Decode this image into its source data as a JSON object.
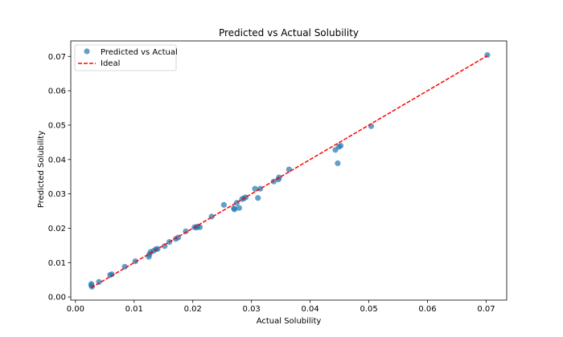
{
  "chart_data": {
    "type": "scatter",
    "title": "Predicted vs Actual Solubility",
    "xlabel": "Actual Solubility",
    "ylabel": "Predicted Solubility",
    "xlim": [
      -0.0008,
      0.0735
    ],
    "ylim": [
      -0.0009,
      0.0745
    ],
    "xticks": [
      0.0,
      0.01,
      0.02,
      0.03,
      0.04,
      0.05,
      0.06,
      0.07
    ],
    "xtick_labels": [
      "0.00",
      "0.01",
      "0.02",
      "0.03",
      "0.04",
      "0.05",
      "0.06",
      "0.07"
    ],
    "yticks": [
      0.0,
      0.01,
      0.02,
      0.03,
      0.04,
      0.05,
      0.06,
      0.07
    ],
    "ytick_labels": [
      "0.00",
      "0.01",
      "0.02",
      "0.03",
      "0.04",
      "0.05",
      "0.06",
      "0.07"
    ],
    "grid": false,
    "legend_position": "top-left",
    "series": [
      {
        "name": "Predicted vs Actual",
        "kind": "scatter",
        "color": "#1f77b4",
        "points": [
          [
            0.0027,
            0.0038
          ],
          [
            0.0027,
            0.0034
          ],
          [
            0.0028,
            0.003
          ],
          [
            0.004,
            0.0044
          ],
          [
            0.0059,
            0.0064
          ],
          [
            0.0062,
            0.0066
          ],
          [
            0.0084,
            0.0088
          ],
          [
            0.0102,
            0.0104
          ],
          [
            0.0125,
            0.0117
          ],
          [
            0.0126,
            0.0124
          ],
          [
            0.0128,
            0.0131
          ],
          [
            0.0133,
            0.0134
          ],
          [
            0.0137,
            0.0139
          ],
          [
            0.014,
            0.014
          ],
          [
            0.0152,
            0.0148
          ],
          [
            0.016,
            0.016
          ],
          [
            0.0171,
            0.0169
          ],
          [
            0.0175,
            0.0173
          ],
          [
            0.0188,
            0.0191
          ],
          [
            0.0203,
            0.0203
          ],
          [
            0.0206,
            0.0202
          ],
          [
            0.0208,
            0.0205
          ],
          [
            0.0212,
            0.0203
          ],
          [
            0.0232,
            0.0234
          ],
          [
            0.0253,
            0.0268
          ],
          [
            0.027,
            0.0258
          ],
          [
            0.0271,
            0.0255
          ],
          [
            0.0275,
            0.0274
          ],
          [
            0.0279,
            0.0259
          ],
          [
            0.0284,
            0.0285
          ],
          [
            0.0287,
            0.0287
          ],
          [
            0.029,
            0.029
          ],
          [
            0.0306,
            0.0315
          ],
          [
            0.0311,
            0.0288
          ],
          [
            0.0315,
            0.0315
          ],
          [
            0.0338,
            0.0336
          ],
          [
            0.0346,
            0.0342
          ],
          [
            0.0347,
            0.0348
          ],
          [
            0.0364,
            0.0371
          ],
          [
            0.0443,
            0.0428
          ],
          [
            0.0447,
            0.0389
          ],
          [
            0.0449,
            0.0437
          ],
          [
            0.0452,
            0.044
          ],
          [
            0.0504,
            0.0497
          ],
          [
            0.0702,
            0.0704
          ]
        ]
      },
      {
        "name": "Ideal",
        "kind": "line",
        "style": "dashed",
        "color": "#ff0000",
        "points": [
          [
            0.0027,
            0.0027
          ],
          [
            0.0702,
            0.0702
          ]
        ]
      }
    ]
  }
}
